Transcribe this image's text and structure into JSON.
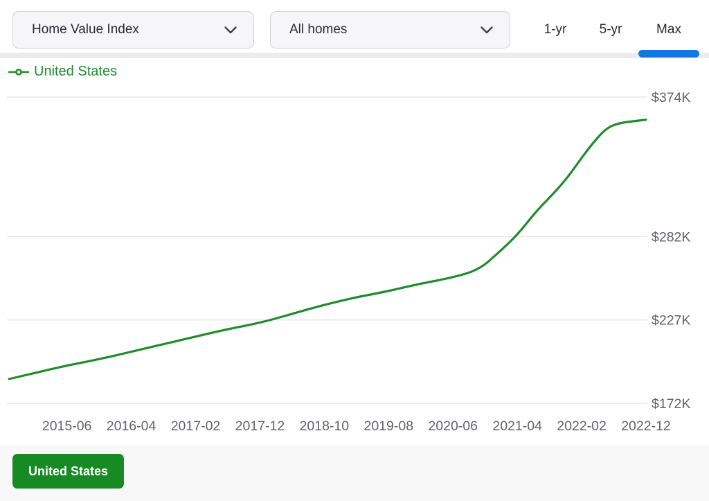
{
  "toolbar": {
    "metric_dropdown": {
      "value": "Home Value Index"
    },
    "segment_dropdown": {
      "value": "All homes"
    },
    "range_tabs": [
      {
        "label": "1-yr",
        "active": false
      },
      {
        "label": "5-yr",
        "active": false
      },
      {
        "label": "Max",
        "active": true
      }
    ]
  },
  "legend": {
    "label": "United States"
  },
  "footer": {
    "chip_label": "United States"
  },
  "colors": {
    "line_green": "#1e8c2d",
    "button_green": "#178a24",
    "tab_active_blue": "#1476e0",
    "grid_gray": "#e9e9ee",
    "axis_text_gray": "#62626b"
  },
  "chart_data": {
    "type": "line",
    "title": "",
    "xlabel": "",
    "ylabel": "",
    "unit": "USD thousands",
    "grid": "horizontal-only",
    "legend_position": "top-left",
    "x_range": [
      "2014-09",
      "2022-12"
    ],
    "ylim": [
      160,
      385
    ],
    "yticks": [
      "$374K",
      "$282K",
      "$227K",
      "$172K"
    ],
    "ytick_values": [
      374,
      282,
      227,
      172
    ],
    "xticks": [
      "2015-06",
      "2016-04",
      "2017-02",
      "2017-12",
      "2018-10",
      "2019-08",
      "2020-06",
      "2021-04",
      "2022-02",
      "2022-12"
    ],
    "series": [
      {
        "name": "United States",
        "points": [
          [
            "2014-09",
            188
          ],
          [
            "2015-01",
            192
          ],
          [
            "2015-06",
            197
          ],
          [
            "2015-11",
            201
          ],
          [
            "2016-04",
            206
          ],
          [
            "2016-09",
            211
          ],
          [
            "2017-02",
            216
          ],
          [
            "2017-07",
            221
          ],
          [
            "2017-12",
            225
          ],
          [
            "2018-05",
            231
          ],
          [
            "2018-10",
            237
          ],
          [
            "2019-03",
            242
          ],
          [
            "2019-08",
            246
          ],
          [
            "2020-01",
            251
          ],
          [
            "2020-06",
            255
          ],
          [
            "2020-10",
            260
          ],
          [
            "2021-01",
            271
          ],
          [
            "2021-04",
            283
          ],
          [
            "2021-07",
            299
          ],
          [
            "2021-10",
            312
          ],
          [
            "2021-12",
            322
          ],
          [
            "2022-02",
            334
          ],
          [
            "2022-04",
            345
          ],
          [
            "2022-06",
            354
          ],
          [
            "2022-08",
            357
          ],
          [
            "2022-10",
            358
          ],
          [
            "2022-12",
            359
          ]
        ]
      }
    ]
  }
}
